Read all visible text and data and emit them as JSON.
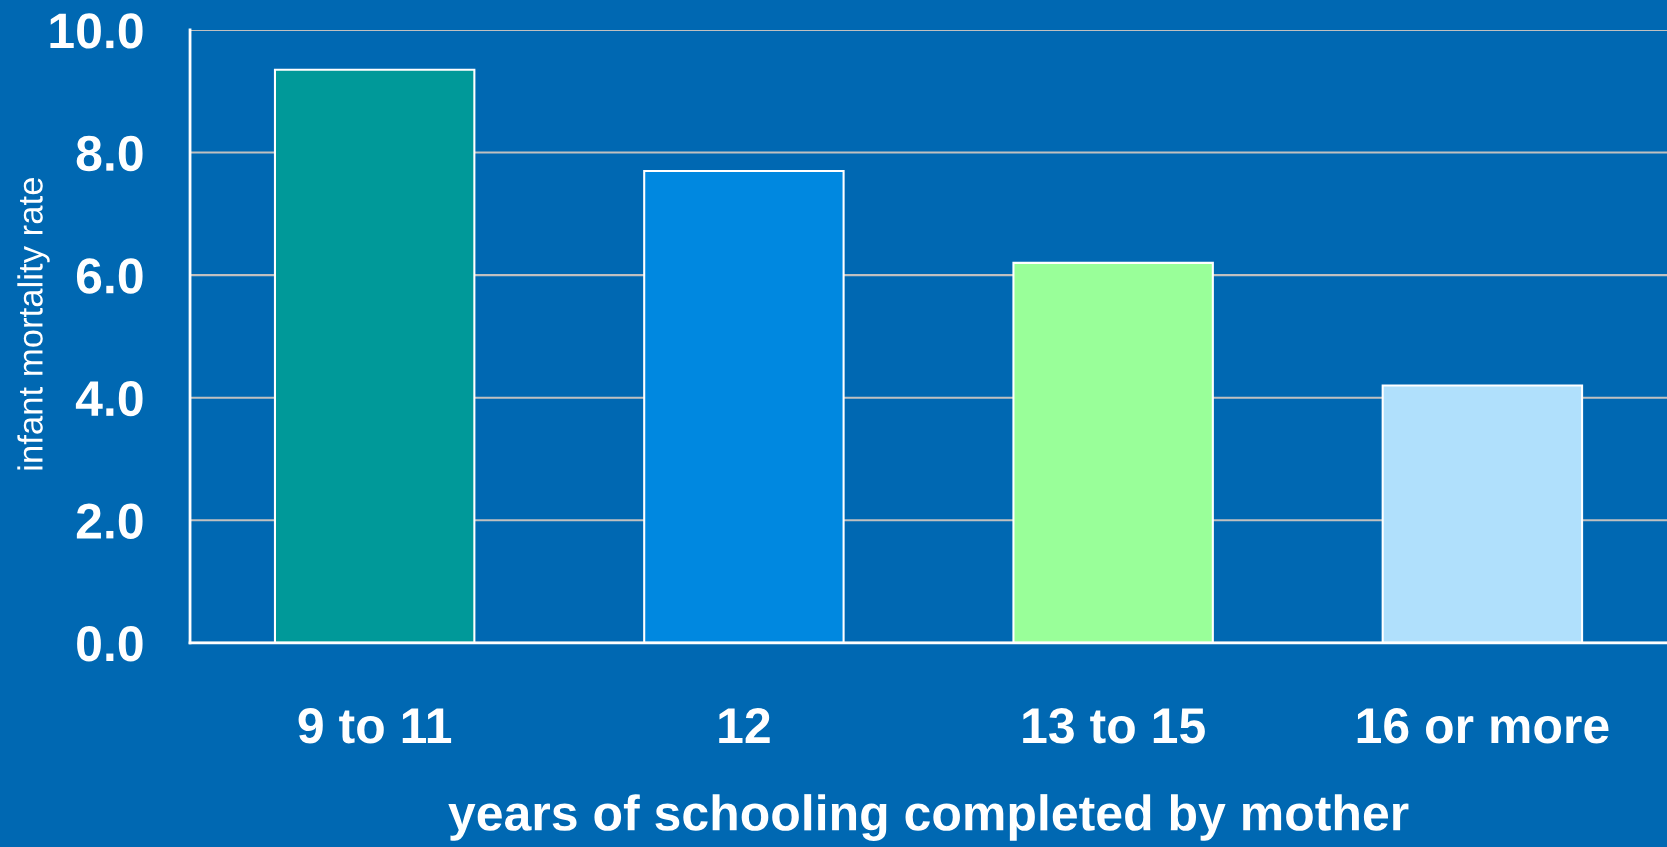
{
  "chart_data": {
    "type": "bar",
    "xlabel": "years of schooling completed by mother",
    "ylabel": "infant mortality rate",
    "categories": [
      "9 to 11",
      "12",
      "13 to 15",
      "16 or more"
    ],
    "values": [
      9.35,
      7.7,
      6.2,
      4.2
    ],
    "colors": [
      "#009999",
      "#0088e0",
      "#99ff99",
      "#b0e0fc"
    ],
    "ylim": [
      0,
      10
    ],
    "yticks": [
      {
        "value": 0,
        "label": "0.0"
      },
      {
        "value": 2,
        "label": "2.0"
      },
      {
        "value": 4,
        "label": "4.0"
      },
      {
        "value": 6,
        "label": "6.0"
      },
      {
        "value": 8,
        "label": "8.0"
      },
      {
        "value": 10,
        "label": "10.0"
      }
    ],
    "grid": "y"
  }
}
